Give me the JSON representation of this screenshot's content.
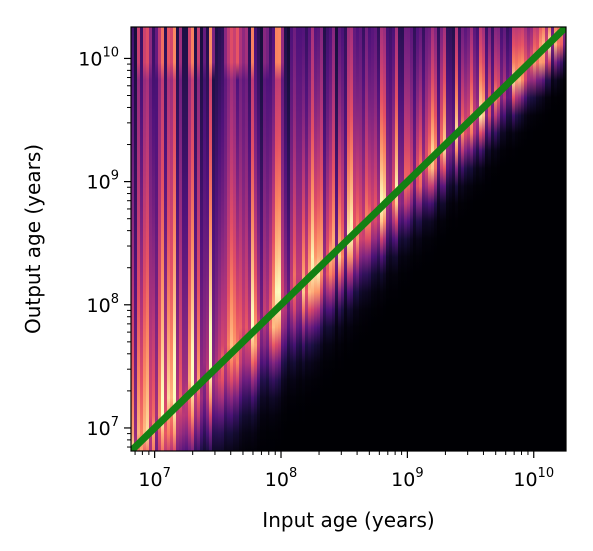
{
  "chart_data": {
    "type": "heatmap",
    "title": "",
    "xlabel": "Input age (years)",
    "ylabel": "Output age (years)",
    "x_scale": "log",
    "y_scale": "log",
    "xlim": [
      6500000,
      18000000000
    ],
    "ylim": [
      6500000,
      18000000000
    ],
    "x_ticks": [
      {
        "value": 10000000,
        "base": "10",
        "exponent": "7"
      },
      {
        "value": 100000000,
        "base": "10",
        "exponent": "8"
      },
      {
        "value": 1000000000,
        "base": "10",
        "exponent": "9"
      },
      {
        "value": 10000000000,
        "base": "10",
        "exponent": "10"
      }
    ],
    "y_ticks": [
      {
        "value": 10000000,
        "base": "10",
        "exponent": "7"
      },
      {
        "value": 100000000,
        "base": "10",
        "exponent": "8"
      },
      {
        "value": 1000000000,
        "base": "10",
        "exponent": "9"
      },
      {
        "value": 10000000000,
        "base": "10",
        "exponent": "10"
      }
    ],
    "colormap": "magma",
    "grid": false,
    "legend": "none",
    "reference_line": {
      "label": "",
      "color": "#138013",
      "x": [
        6500000,
        18000000000
      ],
      "y": [
        6500000,
        18000000000
      ]
    }
  },
  "colors": {
    "background": "#ffffff",
    "axis": "#000000",
    "heatmap_low": "#000004",
    "heatmap_high": "#fcfdbf",
    "line": "#138013"
  }
}
